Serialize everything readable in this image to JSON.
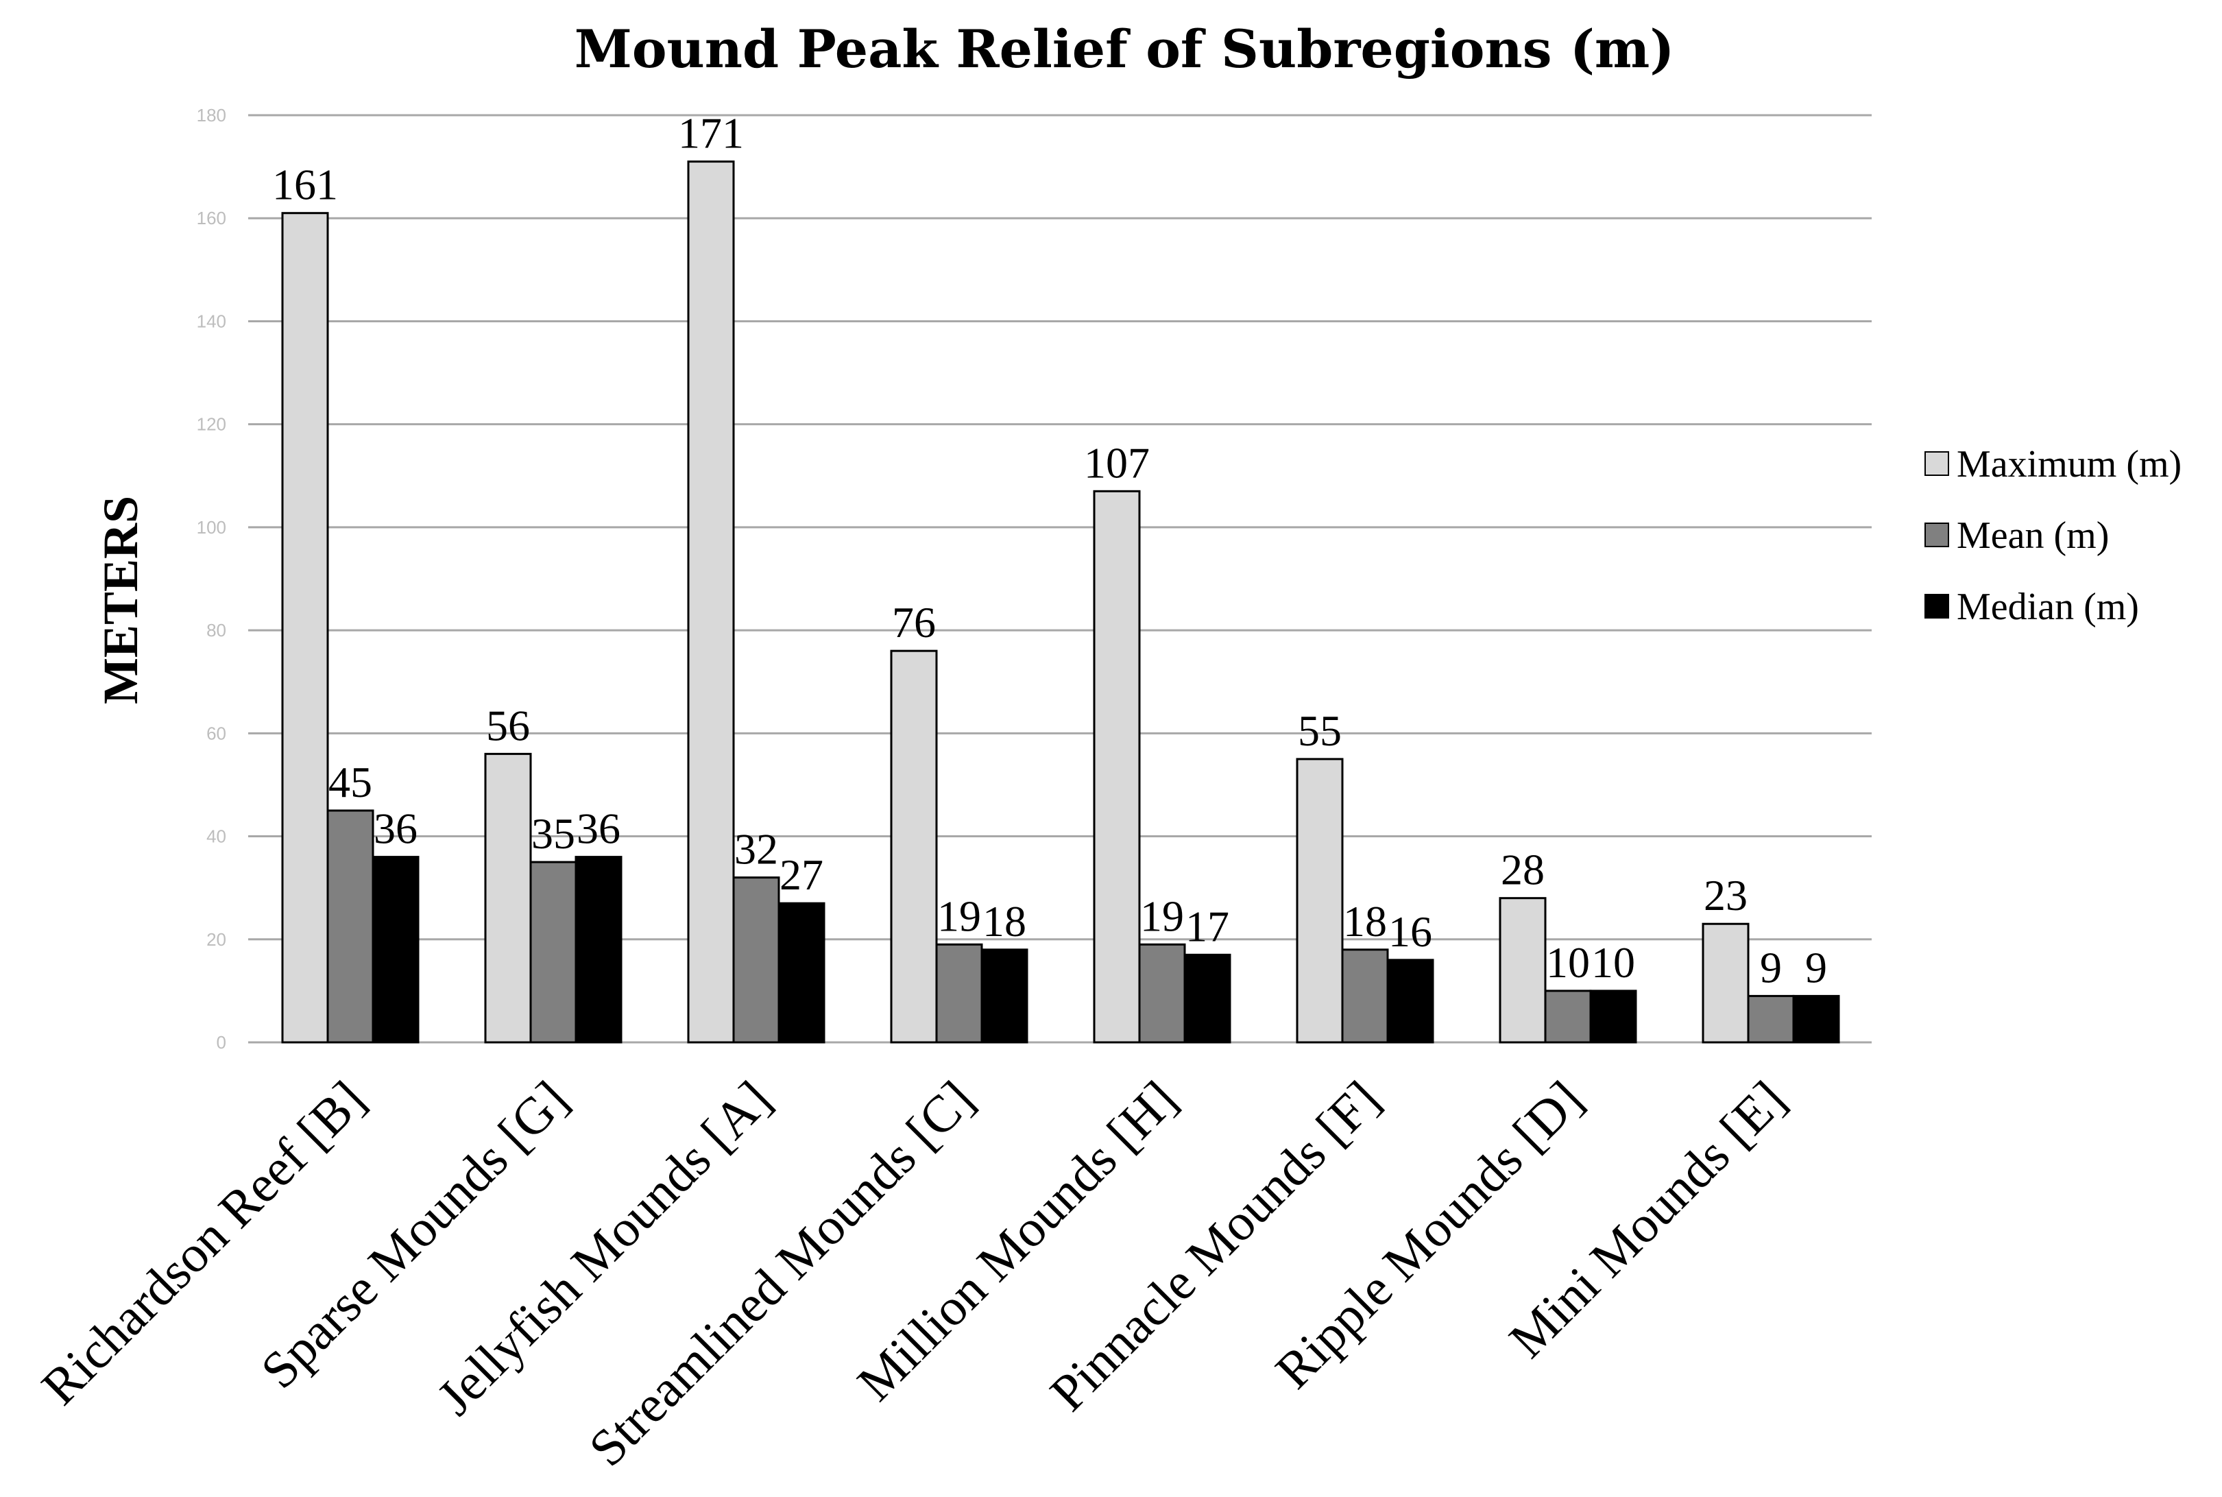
{
  "chart_data": {
    "type": "bar",
    "title": "Mound Peak Relief of Subregions (m)",
    "ylabel": "METERS",
    "xlabel": "",
    "ylim": [
      0,
      180
    ],
    "yticks": [
      "0",
      "20",
      "40",
      "60",
      "80",
      "100",
      "120",
      "140",
      "160",
      "180"
    ],
    "grid": true,
    "legend_position": "right",
    "categories": [
      "Richardson Reef [B]",
      "Sparse Mounds [G]",
      "Jellyfish Mounds [A]",
      "Streamlined Mounds [C]",
      "Million Mounds [H]",
      "Pinnacle Mounds [F]",
      "Ripple Mounds [D]",
      "Mini Mounds [E]"
    ],
    "series": [
      {
        "name": "Maximum (m)",
        "color": "#d9d9d9",
        "values": [
          161,
          56,
          171,
          76,
          107,
          55,
          28,
          23
        ]
      },
      {
        "name": "Mean (m)",
        "color": "#808080",
        "values": [
          45,
          35,
          32,
          19,
          19,
          18,
          10,
          9
        ]
      },
      {
        "name": "Median (m)",
        "color": "#000000",
        "values": [
          36,
          36,
          27,
          18,
          17,
          16,
          10,
          9
        ]
      }
    ]
  }
}
